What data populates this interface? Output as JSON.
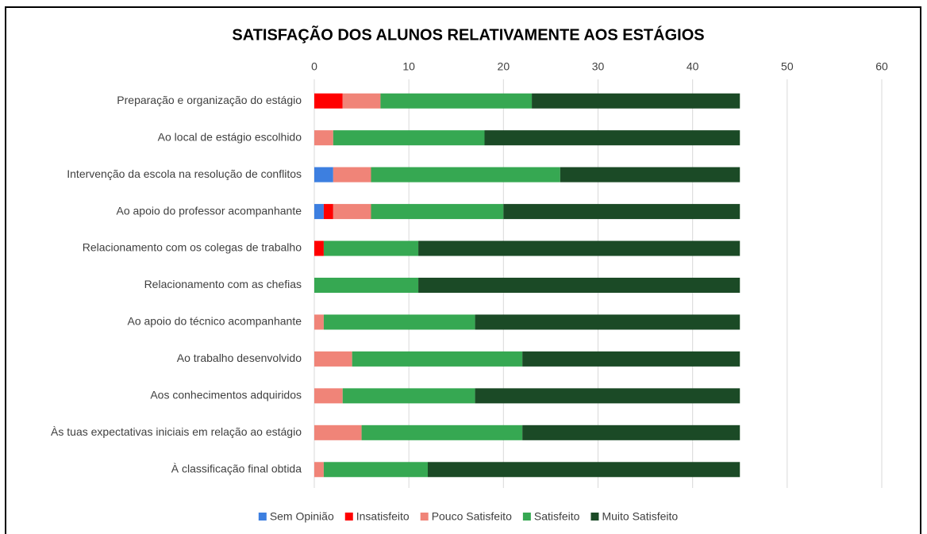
{
  "chart_data": {
    "type": "stacked_bar_horizontal",
    "title": "SATISFAÇÃO DOS ALUNOS RELATIVAMENTE AOS ESTÁGIOS",
    "categories": [
      "Preparação e organização do estágio",
      "Ao local de estágio escolhido",
      "Intervenção da escola na resolução de conflitos",
      "Ao apoio do professor acompanhante",
      "Relacionamento com os colegas de trabalho",
      "Relacionamento com as chefias",
      "Ao apoio do técnico acompanhante",
      "Ao trabalho desenvolvido",
      "Aos conhecimentos adquiridos",
      "Às tuas expectativas iniciais em relação ao estágio",
      "À classificação final obtida"
    ],
    "series": [
      {
        "name": "Sem Opinião",
        "color": "#3d7fe0",
        "values": [
          0,
          0,
          2,
          1,
          0,
          0,
          0,
          0,
          0,
          0,
          0
        ]
      },
      {
        "name": "Insatisfeito",
        "color": "#ff0000",
        "values": [
          3,
          0,
          0,
          1,
          1,
          0,
          0,
          0,
          0,
          0,
          0
        ]
      },
      {
        "name": "Pouco Satisfeito",
        "color": "#f08478",
        "values": [
          4,
          2,
          4,
          4,
          0,
          0,
          1,
          4,
          3,
          5,
          1
        ]
      },
      {
        "name": "Satisfeito",
        "color": "#36a852",
        "values": [
          16,
          16,
          20,
          14,
          10,
          11,
          16,
          18,
          14,
          17,
          11
        ]
      },
      {
        "name": "Muito Satisfeito",
        "color": "#1b4a26",
        "values": [
          22,
          27,
          19,
          25,
          34,
          34,
          28,
          23,
          28,
          23,
          33
        ]
      }
    ],
    "xlim": [
      0,
      60
    ],
    "xticks": [
      0,
      10,
      20,
      30,
      40,
      50,
      60
    ],
    "grid": true,
    "legend": "bottom"
  }
}
